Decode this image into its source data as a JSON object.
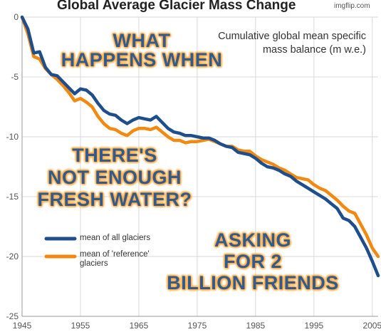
{
  "watermark": "imgflip.com",
  "meme_text": {
    "top_line1": "WHAT",
    "top_line2": "HAPPENS WHEN",
    "middle_line1": "THERE'S",
    "middle_line2": "NOT ENOUGH",
    "middle_line3": "FRESH WATER?",
    "bottom_line1": "ASKING",
    "bottom_line2": "FOR 2",
    "bottom_line3": "BILLION FRIENDS"
  },
  "chart_data": {
    "type": "line",
    "title": "Global Average Glacier Mass Change",
    "subtitle_line1": "Cumulative global mean specific",
    "subtitle_line2": "mass balance (m w.e.)",
    "xlabel": "",
    "ylabel": "",
    "xlim": [
      1945,
      2006
    ],
    "ylim": [
      -25,
      0
    ],
    "x_ticks": [
      "1945",
      "1955",
      "1965",
      "1975",
      "1985",
      "1995",
      "2005"
    ],
    "y_ticks": [
      "0",
      "-5",
      "-10",
      "-15",
      "-20",
      "-25"
    ],
    "grid": true,
    "legend": "bottom-left",
    "series": [
      {
        "name": "mean of all glaciers",
        "color": "#1f4e8c",
        "x": [
          1945,
          1946,
          1947,
          1948,
          1949,
          1950,
          1951,
          1952,
          1953,
          1954,
          1955,
          1956,
          1957,
          1958,
          1959,
          1960,
          1961,
          1962,
          1963,
          1964,
          1965,
          1966,
          1967,
          1968,
          1969,
          1970,
          1971,
          1972,
          1973,
          1974,
          1975,
          1976,
          1977,
          1978,
          1979,
          1980,
          1981,
          1982,
          1983,
          1984,
          1985,
          1986,
          1987,
          1988,
          1989,
          1990,
          1991,
          1992,
          1993,
          1994,
          1995,
          1996,
          1997,
          1998,
          1999,
          2000,
          2001,
          2002,
          2003,
          2004,
          2005,
          2006
        ],
        "y": [
          0,
          -1.0,
          -3.0,
          -2.9,
          -4.2,
          -4.8,
          -4.9,
          -5.4,
          -5.9,
          -6.4,
          -6.0,
          -6.1,
          -6.5,
          -7.2,
          -7.8,
          -8.1,
          -8.2,
          -8.6,
          -8.9,
          -8.6,
          -8.4,
          -8.5,
          -8.6,
          -8.3,
          -8.8,
          -9.3,
          -9.6,
          -9.7,
          -9.9,
          -9.9,
          -10.0,
          -10.1,
          -10.1,
          -10.3,
          -10.6,
          -10.8,
          -10.9,
          -11.3,
          -11.4,
          -11.5,
          -11.8,
          -12.2,
          -12.5,
          -12.6,
          -12.8,
          -13.1,
          -13.3,
          -13.7,
          -14.0,
          -14.3,
          -14.6,
          -14.9,
          -15.2,
          -15.6,
          -16.0,
          -16.8,
          -17.0,
          -17.5,
          -18.4,
          -19.3,
          -20.4,
          -21.6
        ]
      },
      {
        "name": "mean of 'reference' glaciers",
        "color": "#f28a12",
        "x": [
          1945,
          1946,
          1947,
          1948,
          1949,
          1950,
          1951,
          1952,
          1953,
          1954,
          1955,
          1956,
          1957,
          1958,
          1959,
          1960,
          1961,
          1962,
          1963,
          1964,
          1965,
          1966,
          1967,
          1968,
          1969,
          1970,
          1971,
          1972,
          1973,
          1974,
          1975,
          1976,
          1977,
          1978,
          1979,
          1980,
          1981,
          1982,
          1983,
          1984,
          1985,
          1986,
          1987,
          1988,
          1989,
          1990,
          1991,
          1992,
          1993,
          1994,
          1995,
          1996,
          1997,
          1998,
          1999,
          2000,
          2001,
          2002,
          2003,
          2004,
          2005,
          2006
        ],
        "y": [
          0,
          -1.4,
          -3.3,
          -3.5,
          -4.3,
          -4.8,
          -5.2,
          -5.7,
          -6.3,
          -7.0,
          -6.8,
          -7.1,
          -7.5,
          -8.3,
          -8.9,
          -9.3,
          -9.4,
          -9.7,
          -9.9,
          -9.5,
          -9.3,
          -9.3,
          -9.4,
          -9.2,
          -9.6,
          -10.0,
          -10.3,
          -10.3,
          -10.5,
          -10.4,
          -10.4,
          -10.3,
          -10.2,
          -10.4,
          -10.6,
          -10.8,
          -10.8,
          -11.1,
          -11.2,
          -11.2,
          -11.6,
          -11.9,
          -12.1,
          -12.3,
          -12.6,
          -12.8,
          -13.1,
          -13.4,
          -13.5,
          -13.6,
          -14.0,
          -14.3,
          -14.5,
          -14.9,
          -15.3,
          -15.8,
          -16.2,
          -16.4,
          -17.3,
          -18.2,
          -19.3,
          -20.0
        ]
      }
    ]
  }
}
